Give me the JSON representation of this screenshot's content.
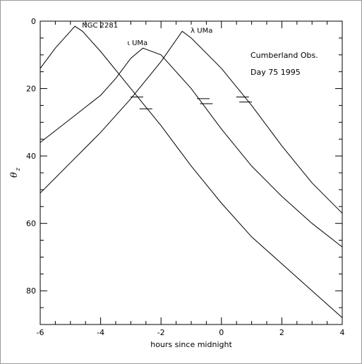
{
  "chart_data": {
    "type": "line",
    "title": "",
    "xlabel": "hours since midnight",
    "ylabel_symbol": "θ",
    "ylabel_subscript": "z",
    "xlim": [
      -6,
      4
    ],
    "ylim": [
      90,
      0
    ],
    "y_inverted": true,
    "xticks": [
      -6,
      -4,
      -2,
      0,
      2,
      4
    ],
    "xtick_labels": [
      "-6",
      "-4",
      "-2",
      "0",
      "2",
      "4"
    ],
    "yticks": [
      0,
      20,
      40,
      60,
      80
    ],
    "ytick_labels": [
      "0",
      "20",
      "40",
      "60",
      "80"
    ],
    "grid": false,
    "annotations": [
      "Cumberland Obs.",
      "Day 75 1995"
    ],
    "series": [
      {
        "name": "NGC 2281",
        "x": [
          -6,
          -5.5,
          -5,
          -4.85,
          -4.6,
          -4,
          -3,
          -2,
          -1,
          0,
          1,
          2,
          3,
          4
        ],
        "y": [
          14,
          8,
          3,
          1.5,
          3,
          9,
          20,
          31,
          43,
          54,
          64,
          72,
          80,
          88
        ]
      },
      {
        "name": "ι UMa",
        "x": [
          -6,
          -5,
          -4,
          -3.5,
          -3,
          -2.6,
          -2,
          -1,
          0,
          1,
          2,
          3,
          4
        ],
        "y": [
          36,
          29,
          22,
          17,
          11,
          8,
          10,
          20,
          32,
          43,
          52,
          60,
          67
        ]
      },
      {
        "name": "λ UMa",
        "x": [
          -6,
          -5,
          -4,
          -3,
          -2,
          -1.3,
          -1,
          0,
          1,
          2,
          3,
          4
        ],
        "y": [
          51,
          42,
          33,
          23,
          12,
          3,
          5,
          14,
          25,
          37,
          48,
          57
        ]
      }
    ],
    "error_marks": [
      {
        "x": -2.8,
        "y": 22.5
      },
      {
        "x": -2.5,
        "y": 26
      },
      {
        "x": -0.6,
        "y": 23
      },
      {
        "x": -0.5,
        "y": 24.5
      },
      {
        "x": 0.7,
        "y": 22.5
      },
      {
        "x": 0.8,
        "y": 24
      }
    ]
  }
}
